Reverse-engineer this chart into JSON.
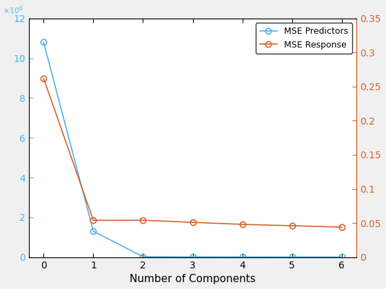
{
  "x": [
    0,
    1,
    2,
    3,
    4,
    5,
    6
  ],
  "mse_predictors": [
    10800000,
    1300000,
    20000,
    10000,
    8000,
    6000,
    5000
  ],
  "mse_response": [
    0.262,
    0.054,
    0.054,
    0.051,
    0.048,
    0.046,
    0.044
  ],
  "color_blue": "#4db3e6",
  "color_orange": "#d4622a",
  "xlabel": "Number of Components",
  "legend_labels": [
    "MSE Predictors",
    "MSE Response"
  ],
  "ylim_left": [
    0,
    12000000
  ],
  "ylim_right": [
    0,
    0.35
  ],
  "yticks_left": [
    0,
    2000000,
    4000000,
    6000000,
    8000000,
    10000000,
    12000000
  ],
  "yticks_right": [
    0,
    0.05,
    0.1,
    0.15,
    0.2,
    0.25,
    0.3,
    0.35
  ],
  "xticks": [
    0,
    1,
    2,
    3,
    4,
    5,
    6
  ],
  "background_color": "#f0f0f0",
  "plot_background": "#ffffff",
  "marker": "o",
  "markersize": 6,
  "linewidth": 1.2,
  "xlabel_fontsize": 11,
  "tick_fontsize": 10
}
